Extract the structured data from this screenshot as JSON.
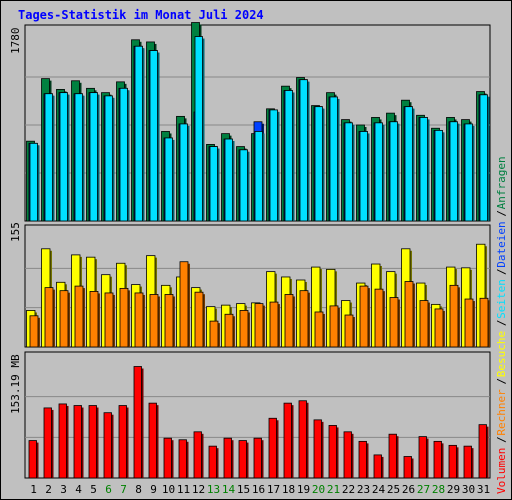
{
  "title": "Tages-Statistik im Monat Juli 2024",
  "colors": {
    "background": "#c0c0c0",
    "title": "#0000ff",
    "anfragen": "#008040",
    "dateien": "#0040ff",
    "seiten": "#00e0ff",
    "besuche": "#ffff00",
    "rechner": "#ff8000",
    "volumen": "#ff0000",
    "weekend_label": "#008000",
    "weekday_label": "#000000"
  },
  "chart_data": [
    {
      "type": "bar",
      "panel": "top",
      "ymax_label": "1780",
      "ymax": 1780,
      "legend_right": [
        {
          "name": "Anfragen",
          "color": "#008040"
        },
        {
          "name": "Dateien",
          "color": "#0040ff"
        },
        {
          "name": "Seiten",
          "color": "#00e0ff"
        }
      ],
      "categories": [
        "1",
        "2",
        "3",
        "4",
        "5",
        "6",
        "7",
        "8",
        "9",
        "10",
        "11",
        "12",
        "13",
        "14",
        "15",
        "16",
        "17",
        "18",
        "19",
        "20",
        "21",
        "22",
        "23",
        "24",
        "25",
        "26",
        "27",
        "28",
        "29",
        "30",
        "31"
      ],
      "weekend": [
        "6",
        "7",
        "13",
        "14",
        "20",
        "21",
        "27",
        "28"
      ],
      "series": [
        {
          "name": "Anfragen",
          "values": [
            740,
            1320,
            1220,
            1300,
            1230,
            1190,
            1290,
            1680,
            1660,
            830,
            970,
            1840,
            710,
            810,
            690,
            810,
            1040,
            1250,
            1330,
            1070,
            1190,
            940,
            890,
            960,
            1000,
            1120,
            980,
            860,
            960,
            940,
            1200
          ]
        },
        {
          "name": "Dateien",
          "values": [
            720,
            1180,
            1190,
            1180,
            1190,
            1160,
            1230,
            1620,
            1580,
            770,
            900,
            1010,
            690,
            760,
            660,
            920,
            1030,
            1210,
            1310,
            1060,
            1150,
            910,
            830,
            910,
            920,
            1060,
            960,
            840,
            920,
            900,
            1170
          ]
        },
        {
          "name": "Seiten",
          "values": [
            720,
            1180,
            1190,
            1180,
            1190,
            1160,
            1230,
            1620,
            1580,
            770,
            900,
            1710,
            690,
            760,
            660,
            830,
            1030,
            1210,
            1310,
            1060,
            1150,
            910,
            830,
            910,
            920,
            1060,
            960,
            840,
            920,
            900,
            1170
          ]
        }
      ]
    },
    {
      "type": "bar",
      "panel": "middle",
      "ymax_label": "155",
      "ymax": 155,
      "legend_right": [
        {
          "name": "Besuche",
          "color": "#ffff00"
        },
        {
          "name": "Rechner",
          "color": "#ff8000"
        }
      ],
      "categories": [
        "1",
        "2",
        "3",
        "4",
        "5",
        "6",
        "7",
        "8",
        "9",
        "10",
        "11",
        "12",
        "13",
        "14",
        "15",
        "16",
        "17",
        "18",
        "19",
        "20",
        "21",
        "22",
        "23",
        "24",
        "25",
        "26",
        "27",
        "28",
        "29",
        "30",
        "31"
      ],
      "series": [
        {
          "name": "Besuche",
          "values": [
            48,
            129,
            85,
            121,
            118,
            95,
            110,
            82,
            120,
            81,
            92,
            78,
            53,
            55,
            57,
            58,
            99,
            92,
            88,
            105,
            102,
            61,
            84,
            109,
            99,
            129,
            84,
            56,
            105,
            104,
            135
          ]
        },
        {
          "name": "Rechner",
          "values": [
            41,
            78,
            74,
            80,
            73,
            71,
            77,
            71,
            69,
            69,
            112,
            72,
            34,
            43,
            48,
            57,
            59,
            69,
            74,
            46,
            54,
            42,
            80,
            76,
            65,
            86,
            61,
            50,
            81,
            63,
            64
          ]
        }
      ]
    },
    {
      "type": "bar",
      "panel": "bottom",
      "ymax_label": "153.19 MB",
      "ymax": 153.19,
      "legend_right": [
        {
          "name": "Volumen",
          "color": "#ff0000"
        }
      ],
      "categories": [
        "1",
        "2",
        "3",
        "4",
        "5",
        "6",
        "7",
        "8",
        "9",
        "10",
        "11",
        "12",
        "13",
        "14",
        "15",
        "16",
        "17",
        "18",
        "19",
        "20",
        "21",
        "22",
        "23",
        "24",
        "25",
        "26",
        "27",
        "28",
        "29",
        "30",
        "31"
      ],
      "series": [
        {
          "name": "Volumen",
          "values": [
            47,
            88,
            93,
            91,
            91,
            82,
            91,
            140,
            94,
            50,
            48,
            58,
            40,
            50,
            47,
            50,
            75,
            94,
            97,
            73,
            66,
            58,
            46,
            29,
            55,
            27,
            52,
            46,
            41,
            40,
            67
          ]
        }
      ]
    }
  ],
  "right_legend": [
    {
      "name": "Volumen",
      "color": "#ff0000"
    },
    {
      "name": "Rechner",
      "color": "#ff8000"
    },
    {
      "name": "Besuche",
      "color": "#ffff00"
    },
    {
      "name": "Seiten",
      "color": "#00e0ff"
    },
    {
      "name": "Dateien",
      "color": "#0040ff"
    },
    {
      "name": "Anfragen",
      "color": "#008040"
    }
  ]
}
